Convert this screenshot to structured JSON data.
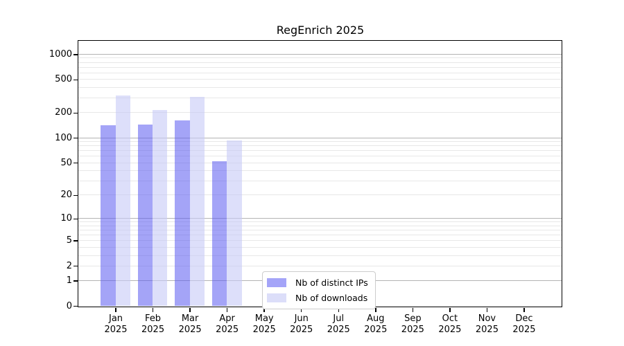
{
  "chart_data": {
    "type": "bar",
    "title": "RegEnrich 2025",
    "categories": [
      "Jan",
      "Feb",
      "Mar",
      "Apr",
      "May",
      "Jun",
      "Jul",
      "Aug",
      "Sep",
      "Oct",
      "Nov",
      "Dec"
    ],
    "category_year": "2025",
    "series": [
      {
        "name": "Nb of distinct IPs",
        "values": [
          141,
          143,
          161,
          52,
          0,
          0,
          0,
          0,
          0,
          0,
          0,
          0
        ],
        "color": "rgba(90,90,240,0.55)",
        "legend_color": "#a4a4f8"
      },
      {
        "name": "Nb of downloads",
        "values": [
          321,
          216,
          311,
          93,
          0,
          0,
          0,
          0,
          0,
          0,
          0,
          0
        ],
        "color": "rgba(198,201,246,0.6)",
        "legend_color": "#dcdef9"
      }
    ],
    "y_axis": {
      "scale": "log1p",
      "ticks": [
        0,
        1,
        2,
        5,
        10,
        20,
        50,
        100,
        200,
        500,
        1000
      ],
      "max": 1445,
      "major_gridlines": [
        1,
        10,
        100,
        1000
      ],
      "minor_gridlines": [
        2,
        3,
        4,
        5,
        6,
        7,
        8,
        9,
        20,
        30,
        40,
        50,
        60,
        70,
        80,
        90,
        200,
        300,
        400,
        500,
        600,
        700,
        800,
        900
      ]
    },
    "x_axis": {
      "tick_count": 12
    },
    "legend": {
      "position": "lower-center",
      "items": [
        "Nb of distinct IPs",
        "Nb of downloads"
      ]
    },
    "grid": true,
    "background": "#ffffff"
  }
}
